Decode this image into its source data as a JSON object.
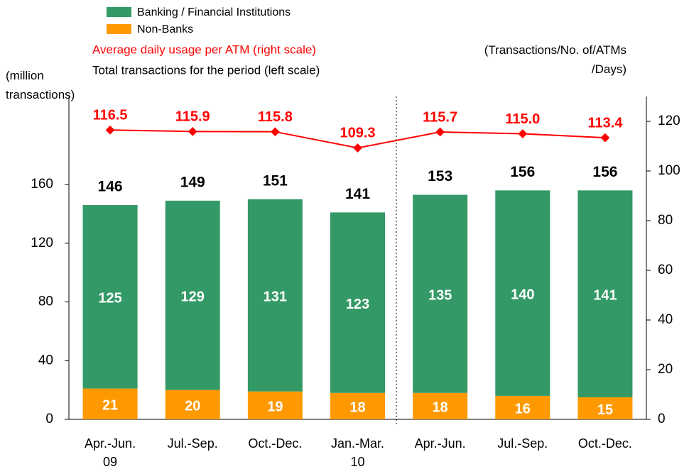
{
  "chart_data": {
    "type": "bar",
    "legend_lines": [
      "Average daily usage per ATM (right scale)",
      "Total transactions for the period (left scale)"
    ],
    "y_label": "(million\ntransactions)",
    "y2_label": "(Transactions/No. of/ATMs\n/Days)",
    "categories": [
      "Apr.-Jun.\n09",
      "Jul.-Sep.",
      "Oct.-Dec.",
      "Jan.-Mar.\n10",
      "Apr.-Jun.",
      "Jul.-Sep.",
      "Oct.-Dec."
    ],
    "series": [
      {
        "name": "Non-Banks",
        "color": "#ff9900",
        "values": [
          21,
          20,
          19,
          18,
          18,
          16,
          15
        ]
      },
      {
        "name": "Banking / Financial Institutions",
        "color": "#339966",
        "values": [
          125,
          129,
          131,
          123,
          135,
          140,
          141
        ]
      },
      {
        "name": "Average daily usage per ATM",
        "color": "#ff0000",
        "type": "line",
        "axis": "y2",
        "values": [
          116.5,
          115.9,
          115.8,
          109.3,
          115.7,
          115.0,
          113.4
        ],
        "value_labels": [
          "116.5",
          "115.9",
          "115.8",
          "109.3",
          "115.7",
          "115.0",
          "113.4"
        ]
      }
    ],
    "totals": [
      146,
      149,
      151,
      141,
      153,
      156,
      156
    ],
    "stacked": true,
    "ylim": [
      0,
      220
    ],
    "yticks": [
      0,
      40,
      80,
      120,
      160
    ],
    "y2lim": [
      0,
      130
    ],
    "y2ticks": [
      0,
      20,
      40,
      60,
      80,
      100,
      120
    ]
  }
}
